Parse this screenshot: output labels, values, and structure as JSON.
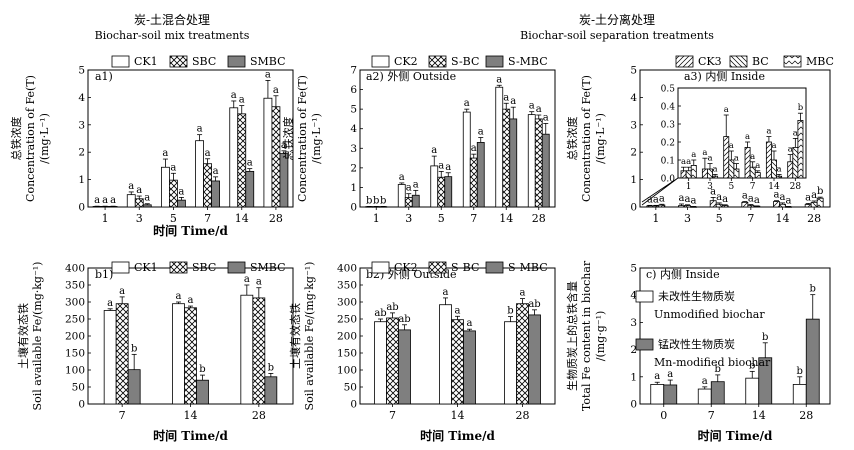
{
  "headers": {
    "mix_cn": "炭-土混合处理",
    "mix_en": "Biochar-soil mix treatments",
    "sep_cn": "炭-土分离处理",
    "sep_en": "Biochar-soil separation treatments"
  },
  "chart_data": [
    {
      "id": "a1",
      "type": "bar",
      "panel_label": "a1)",
      "ylabel_cn": "总铁浓度",
      "ylabel_en": "Concentration of Fe(T)",
      "ylabel_unit": "/(mg·L⁻¹)",
      "xlabel": "时间 Time/d",
      "ylim": [
        0,
        5
      ],
      "yticks": [
        0,
        1,
        2,
        3,
        4,
        5
      ],
      "categories": [
        "1",
        "3",
        "5",
        "7",
        "14",
        "28"
      ],
      "series": [
        {
          "name": "CK1",
          "pattern": "white",
          "values": [
            0.02,
            0.45,
            1.45,
            2.42,
            3.62,
            3.97
          ],
          "errors": [
            0.01,
            0.1,
            0.3,
            0.22,
            0.25,
            0.65
          ],
          "letters": [
            "a",
            "a",
            "a",
            "a",
            "a",
            "a"
          ]
        },
        {
          "name": "SBC",
          "pattern": "cross",
          "values": [
            0.02,
            0.3,
            0.98,
            1.58,
            3.4,
            3.66
          ],
          "errors": [
            0.01,
            0.1,
            0.25,
            0.18,
            0.3,
            0.4
          ],
          "letters": [
            "a",
            "a",
            "a",
            "a",
            "a",
            "a"
          ]
        },
        {
          "name": "SMBC",
          "pattern": "gray",
          "values": [
            0.02,
            0.08,
            0.25,
            0.95,
            1.3,
            1.95
          ],
          "errors": [
            0.01,
            0.04,
            0.1,
            0.15,
            0.1,
            0.1
          ],
          "letters": [
            "a",
            "a",
            "a",
            "a",
            "a",
            "a"
          ]
        }
      ]
    },
    {
      "id": "a2",
      "type": "bar",
      "panel_label": "a2) 外侧 Outside",
      "ylabel_cn": "总铁浓度",
      "ylabel_en": "Concentration of Fe(T)",
      "ylabel_unit": "/(mg·L⁻¹)",
      "xlabel": "",
      "ylim": [
        0,
        7
      ],
      "yticks": [
        0,
        1,
        2,
        3,
        4,
        5,
        6,
        7
      ],
      "categories": [
        "1",
        "3",
        "5",
        "7",
        "14",
        "28"
      ],
      "series": [
        {
          "name": "CK2",
          "pattern": "white",
          "values": [
            0.02,
            1.15,
            2.1,
            4.85,
            6.12,
            4.72
          ],
          "errors": [
            0.01,
            0.08,
            0.5,
            0.15,
            0.1,
            0.15
          ],
          "letters": [
            "b",
            "a",
            "a",
            "a",
            "a",
            "a"
          ]
        },
        {
          "name": "S-BC",
          "pattern": "cross",
          "values": [
            0.02,
            0.48,
            1.52,
            2.5,
            5.0,
            4.5
          ],
          "errors": [
            0.01,
            0.2,
            0.3,
            0.2,
            0.3,
            0.2
          ],
          "letters": [
            "b",
            "a",
            "a",
            "a",
            "a",
            "a"
          ]
        },
        {
          "name": "S-MBC",
          "pattern": "gray",
          "values": [
            0.02,
            0.6,
            1.55,
            3.3,
            4.5,
            3.72
          ],
          "errors": [
            0.01,
            0.25,
            0.2,
            0.25,
            0.6,
            0.55
          ],
          "letters": [
            "b",
            "a",
            "a",
            "a",
            "a",
            "a"
          ]
        }
      ]
    },
    {
      "id": "a3",
      "type": "bar",
      "panel_label": "a3) 内侧 Inside",
      "ylabel_cn": "总铁浓度",
      "ylabel_en": "Concentration of Fe(T)",
      "ylabel_unit": "/(mg·L⁻¹)",
      "xlabel": "",
      "ylim": [
        0,
        5
      ],
      "yticks": [
        0,
        1,
        2,
        3,
        4,
        5
      ],
      "categories": [
        "1",
        "3",
        "5",
        "7",
        "14",
        "28"
      ],
      "inset_ylim": [
        0,
        0.5
      ],
      "inset_yticks": [
        "0.0",
        "0.1",
        "0.2",
        "0.3",
        "0.4",
        "0.5"
      ],
      "series": [
        {
          "name": "CK3",
          "pattern": "lines",
          "values": [
            0.04,
            0.05,
            0.23,
            0.17,
            0.2,
            0.09
          ],
          "errors": [
            0.02,
            0.06,
            0.12,
            0.03,
            0.03,
            0.04
          ],
          "letters": [
            "a",
            "a",
            "a",
            "a",
            "a",
            "a"
          ]
        },
        {
          "name": "BC",
          "pattern": "backlines",
          "values": [
            0.04,
            0.05,
            0.1,
            0.06,
            0.1,
            0.17
          ],
          "errors": [
            0.02,
            0.03,
            0.05,
            0.03,
            0.05,
            0.05
          ],
          "letters": [
            "a",
            "a",
            "a",
            "a",
            "a",
            "a"
          ]
        },
        {
          "name": "MBC",
          "pattern": "zigzag",
          "values": [
            0.07,
            0.01,
            0.05,
            0.03,
            0.01,
            0.32
          ],
          "errors": [
            0.03,
            0.01,
            0.03,
            0.01,
            0.01,
            0.04
          ],
          "letters": [
            "a",
            "a",
            "a",
            "a",
            "a",
            "b"
          ]
        }
      ]
    },
    {
      "id": "b1",
      "type": "bar",
      "panel_label": "b1)",
      "ylabel_cn": "土壤有效态铁",
      "ylabel_en": "Soil available Fe/(mg·kg⁻¹)",
      "xlabel": "时间 Time/d",
      "ylim": [
        0,
        400
      ],
      "yticks": [
        0,
        50,
        100,
        150,
        200,
        250,
        300,
        350,
        400
      ],
      "categories": [
        "7",
        "14",
        "28"
      ],
      "series": [
        {
          "name": "CK1",
          "pattern": "white",
          "values": [
            275,
            295,
            320
          ],
          "errors": [
            5,
            5,
            30
          ],
          "letters": [
            "a",
            "a",
            "a"
          ]
        },
        {
          "name": "SBC",
          "pattern": "cross",
          "values": [
            295,
            283,
            312
          ],
          "errors": [
            20,
            5,
            30
          ],
          "letters": [
            "a",
            "a",
            "a"
          ]
        },
        {
          "name": "SMBC",
          "pattern": "gray",
          "values": [
            101,
            70,
            80
          ],
          "errors": [
            45,
            15,
            10
          ],
          "letters": [
            "b",
            "b",
            "b"
          ]
        }
      ]
    },
    {
      "id": "b2",
      "type": "bar",
      "panel_label": "b2) 外侧 Outside",
      "ylabel_cn": "土壤有效态铁",
      "ylabel_en": "Soil available Fe/(mg·kg⁻¹)",
      "xlabel": "时间 Time/d",
      "ylim": [
        0,
        400
      ],
      "yticks": [
        0,
        50,
        100,
        150,
        200,
        250,
        300,
        350,
        400
      ],
      "categories": [
        "7",
        "14",
        "28"
      ],
      "series": [
        {
          "name": "CK2",
          "pattern": "white",
          "values": [
            242,
            292,
            242
          ],
          "errors": [
            8,
            20,
            15
          ],
          "letters": [
            "ab",
            "a",
            "b"
          ]
        },
        {
          "name": "S-BC",
          "pattern": "cross",
          "values": [
            253,
            248,
            295
          ],
          "errors": [
            15,
            10,
            15
          ],
          "letters": [
            "ab",
            "a",
            "a"
          ]
        },
        {
          "name": "S-MBC",
          "pattern": "gray",
          "values": [
            218,
            215,
            262
          ],
          "errors": [
            15,
            5,
            15
          ],
          "letters": [
            "ab",
            "a",
            "ab"
          ]
        }
      ]
    },
    {
      "id": "c",
      "type": "bar",
      "panel_label": "c) 内侧 Inside",
      "ylabel_cn": "生物质炭上的总铁含量",
      "ylabel_en": "Total Fe content in biochar",
      "ylabel_unit": "/(mg·g⁻¹)",
      "xlabel": "时间 Time/d",
      "ylim": [
        0,
        5
      ],
      "yticks": [
        0,
        1,
        2,
        3,
        4,
        5
      ],
      "categories": [
        "0",
        "7",
        "14",
        "28"
      ],
      "series": [
        {
          "name": "未改性生物质炭",
          "name_en": "Unmodified biochar",
          "pattern": "white",
          "values": [
            0.72,
            0.55,
            0.95,
            0.72
          ],
          "errors": [
            0.08,
            0.08,
            0.25,
            0.28
          ],
          "letters": [
            "a",
            "a",
            "b",
            "b"
          ]
        },
        {
          "name": "锰改性生物质炭",
          "name_en": "Mn-modified biochar",
          "pattern": "gray",
          "values": [
            0.7,
            0.82,
            1.7,
            3.12
          ],
          "errors": [
            0.18,
            0.25,
            0.55,
            0.9
          ],
          "letters": [
            "a",
            "b",
            "b",
            "b"
          ]
        }
      ]
    }
  ]
}
